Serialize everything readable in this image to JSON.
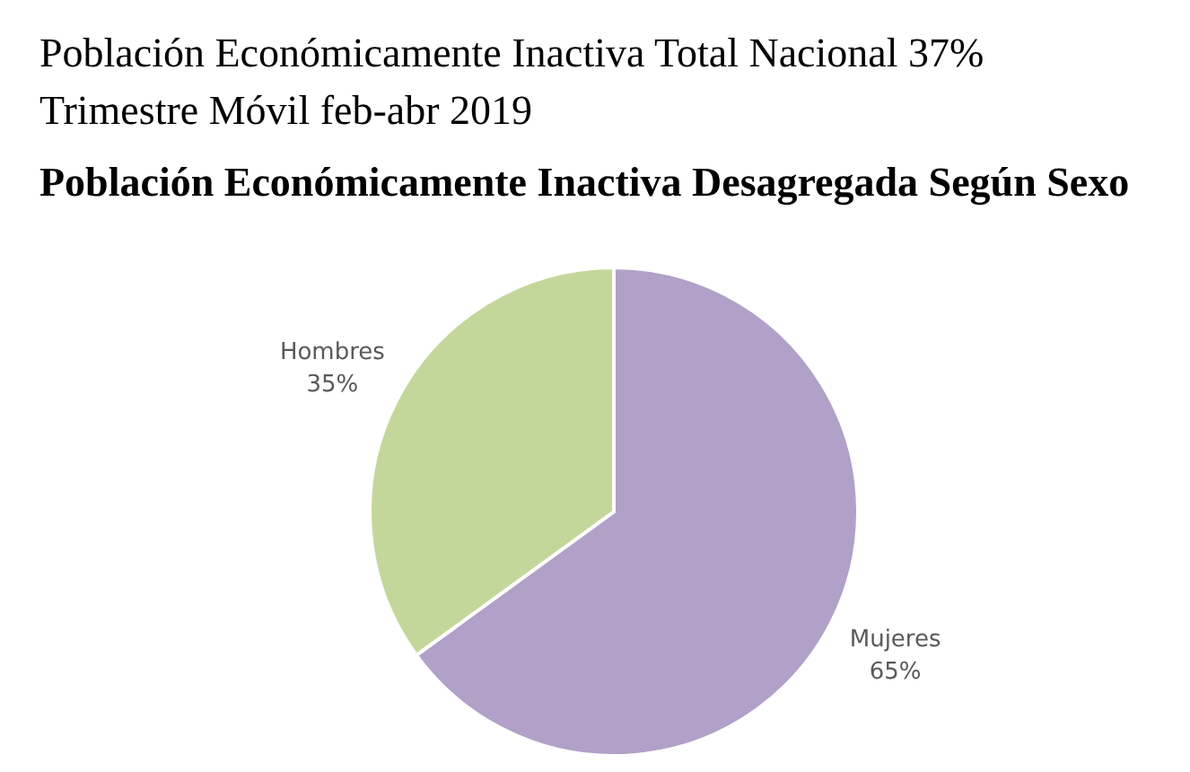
{
  "chart_data": {
    "type": "pie",
    "title": "Población Económicamente Inactiva Desagregada Según Sexo",
    "subtitle": "Trimestre Móvil feb-abr 2019",
    "annotations": [
      "Población Económicamente Inactiva Total Nacional 37%"
    ],
    "categories": [
      "Mujeres",
      "Hombres"
    ],
    "values": [
      65,
      35
    ],
    "value_labels": [
      "65%",
      "35%"
    ],
    "colors": [
      "#b1a0c7",
      "#c4d79b"
    ]
  }
}
